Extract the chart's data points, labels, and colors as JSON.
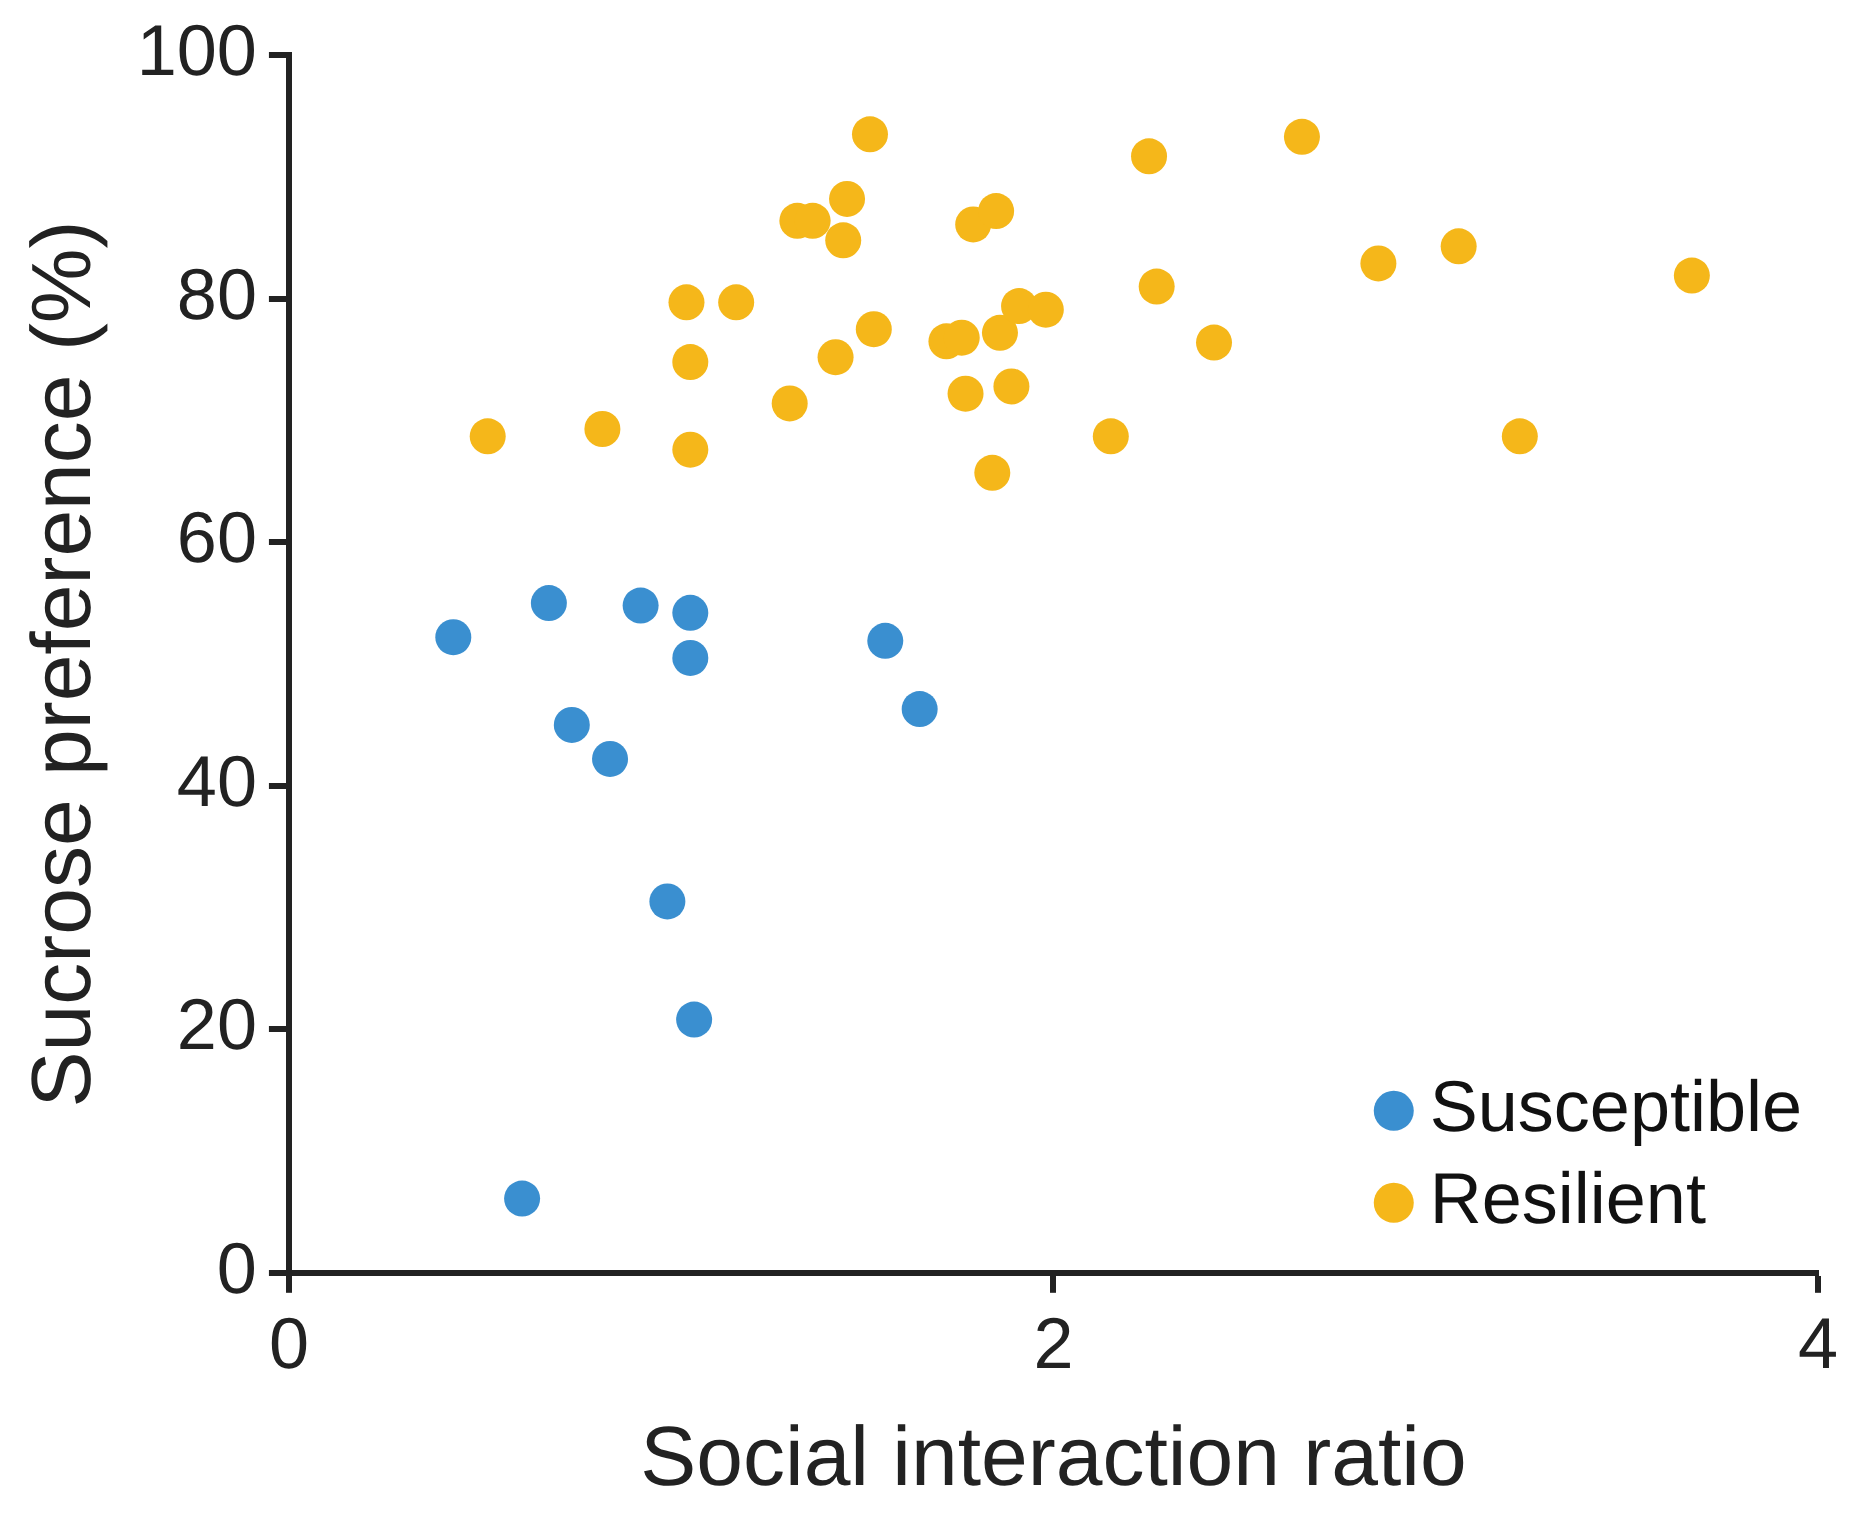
{
  "chart_data": {
    "type": "scatter",
    "xlabel": "Social interaction ratio",
    "ylabel": "Sucrose preference (%)",
    "xlim": [
      0,
      4
    ],
    "xticks": [
      0,
      2,
      4
    ],
    "ylim": [
      0,
      100
    ],
    "yticks": [
      0,
      20,
      40,
      60,
      80,
      100
    ],
    "grid": false,
    "legend": "bottom right",
    "marker": "circle",
    "series": [
      {
        "name": "Susceptible",
        "color": "#3a8fd0",
        "x": [
          0.43,
          0.68,
          0.74,
          0.84,
          0.92,
          0.99,
          1.06,
          0.61,
          1.05,
          1.05,
          1.56,
          1.65
        ],
        "values": [
          52.2,
          55.0,
          45.0,
          42.2,
          54.8,
          30.5,
          20.8,
          6.1,
          54.2,
          50.5,
          51.9,
          46.3
        ]
      },
      {
        "name": "Resilient",
        "color": "#f5b71a",
        "x": [
          0.52,
          0.82,
          1.04,
          1.05,
          1.05,
          1.17,
          1.31,
          1.33,
          1.37,
          1.43,
          1.45,
          1.46,
          1.52,
          1.53,
          1.72,
          1.76,
          1.77,
          1.79,
          1.84,
          1.85,
          1.86,
          1.89,
          1.91,
          1.98,
          2.15,
          2.25,
          2.27,
          2.42,
          2.65,
          2.85,
          3.06,
          3.22,
          3.67
        ],
        "values": [
          68.7,
          69.3,
          79.7,
          74.8,
          67.6,
          79.7,
          71.4,
          86.4,
          86.4,
          75.2,
          84.8,
          88.2,
          93.5,
          77.5,
          76.5,
          76.8,
          72.2,
          86.1,
          65.7,
          87.2,
          77.2,
          72.8,
          79.4,
          79.1,
          68.7,
          91.7,
          81.0,
          76.4,
          93.3,
          82.9,
          84.3,
          68.7,
          81.9
        ]
      }
    ]
  }
}
